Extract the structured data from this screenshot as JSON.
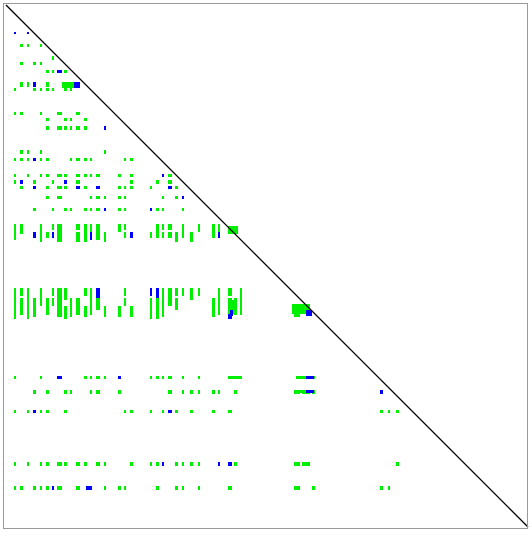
{
  "matrix_view": {
    "background_color": "#ffffff",
    "frame_color": "#9a9a9a",
    "diagonal_color": "#000000",
    "fill_color_low": "#00ee00",
    "fill_color_high": "#0000ff"
  }
}
